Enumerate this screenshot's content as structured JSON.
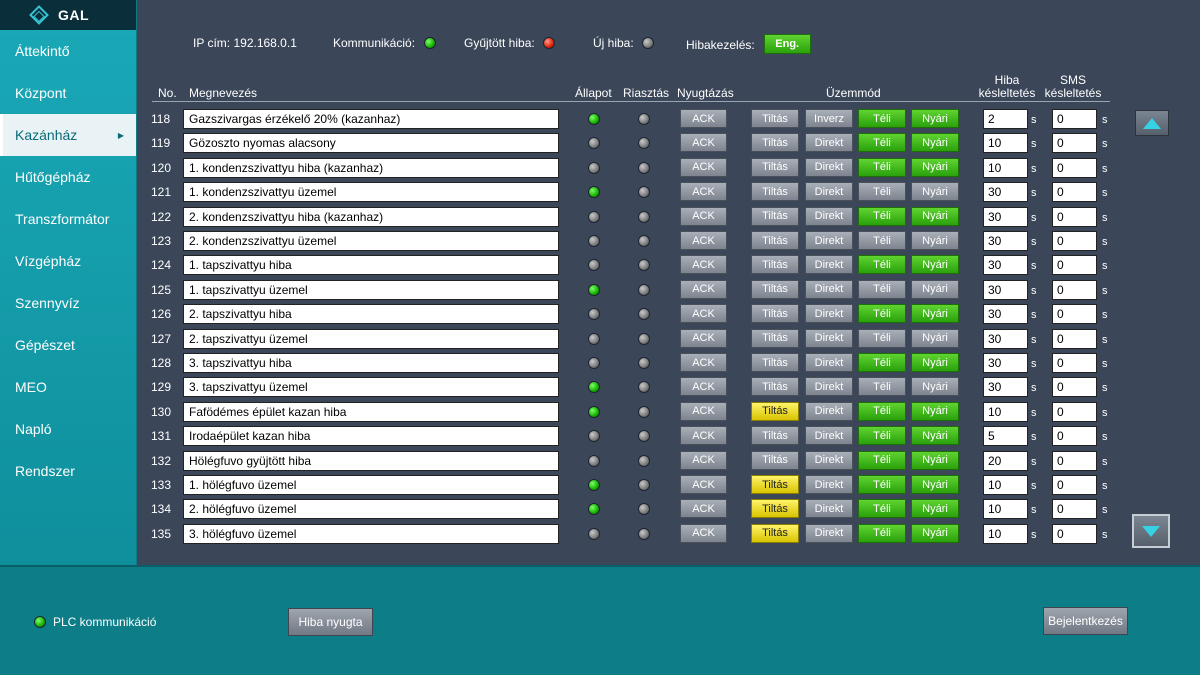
{
  "app": {
    "logo_text": "GAL"
  },
  "sidebar": {
    "items": [
      {
        "label": "Áttekintő",
        "active": false
      },
      {
        "label": "Központ",
        "active": false
      },
      {
        "label": "Kazánház",
        "active": true
      },
      {
        "label": "Hűtőgépház",
        "active": false
      },
      {
        "label": "Transzformátor",
        "active": false
      },
      {
        "label": "Vízgépház",
        "active": false
      },
      {
        "label": "Szennyvíz",
        "active": false
      },
      {
        "label": "Gépészet",
        "active": false
      },
      {
        "label": "MEO",
        "active": false
      },
      {
        "label": "Napló",
        "active": false
      },
      {
        "label": "Rendszer",
        "active": false
      }
    ]
  },
  "status": {
    "ip_label": "IP cím:",
    "ip_value": "192.168.0.1",
    "comm_label": "Kommunikáció:",
    "comm_state": "green",
    "collected_label": "Gyűjtött hiba:",
    "collected_state": "red",
    "new_label": "Új hiba:",
    "new_state": "gray",
    "handling_label": "Hibakezelés:",
    "handling_button": "Eng."
  },
  "columns": {
    "no": "No.",
    "name": "Megnevezés",
    "state": "Állapot",
    "alarm": "Riasztás",
    "ack": "Nyugtázás",
    "mode": "Üzemmód",
    "delay_1": "Hiba",
    "delay_2": "késleltetés",
    "sms_1": "SMS",
    "sms_2": "késleltetés"
  },
  "labels": {
    "ack": "ACK",
    "block": "Tiltás",
    "direct": "Direkt",
    "inverse": "Inverz",
    "winter": "Téli",
    "summer": "Nyári",
    "unit": "s"
  },
  "colors": {
    "green": "#2aa10c",
    "yellow": "#d8c400",
    "gray": "#7d848f",
    "red": "#e0200a"
  },
  "rows": [
    {
      "no": "118",
      "name": "Gazszivargas érzékelő 20% (kazanhaz)",
      "state": "green",
      "alarm": "gray",
      "block": false,
      "mode": "Inverz",
      "season": "both",
      "delay": "2",
      "sms": "0"
    },
    {
      "no": "119",
      "name": "Gözoszto nyomas alacsony",
      "state": "gray",
      "alarm": "gray",
      "block": false,
      "mode": "Direkt",
      "season": "both",
      "delay": "10",
      "sms": "0"
    },
    {
      "no": "120",
      "name": "1. kondenzszivattyu hiba (kazanhaz)",
      "state": "gray",
      "alarm": "gray",
      "block": false,
      "mode": "Direkt",
      "season": "both",
      "delay": "10",
      "sms": "0"
    },
    {
      "no": "121",
      "name": "1. kondenzszivattyu üzemel",
      "state": "green",
      "alarm": "gray",
      "block": false,
      "mode": "Direkt",
      "season": "none",
      "delay": "30",
      "sms": "0"
    },
    {
      "no": "122",
      "name": "2. kondenzszivattyu hiba (kazanhaz)",
      "state": "gray",
      "alarm": "gray",
      "block": false,
      "mode": "Direkt",
      "season": "both",
      "delay": "30",
      "sms": "0"
    },
    {
      "no": "123",
      "name": "2. kondenzszivattyu üzemel",
      "state": "gray",
      "alarm": "gray",
      "block": false,
      "mode": "Direkt",
      "season": "none",
      "delay": "30",
      "sms": "0"
    },
    {
      "no": "124",
      "name": "1. tapszivattyu hiba",
      "state": "gray",
      "alarm": "gray",
      "block": false,
      "mode": "Direkt",
      "season": "both",
      "delay": "30",
      "sms": "0"
    },
    {
      "no": "125",
      "name": "1. tapszivattyu üzemel",
      "state": "green",
      "alarm": "gray",
      "block": false,
      "mode": "Direkt",
      "season": "none",
      "delay": "30",
      "sms": "0"
    },
    {
      "no": "126",
      "name": "2. tapszivattyu hiba",
      "state": "gray",
      "alarm": "gray",
      "block": false,
      "mode": "Direkt",
      "season": "both",
      "delay": "30",
      "sms": "0"
    },
    {
      "no": "127",
      "name": "2. tapszivattyu üzemel",
      "state": "gray",
      "alarm": "gray",
      "block": false,
      "mode": "Direkt",
      "season": "none",
      "delay": "30",
      "sms": "0"
    },
    {
      "no": "128",
      "name": "3. tapszivattyu hiba",
      "state": "gray",
      "alarm": "gray",
      "block": false,
      "mode": "Direkt",
      "season": "both",
      "delay": "30",
      "sms": "0"
    },
    {
      "no": "129",
      "name": "3. tapszivattyu üzemel",
      "state": "green",
      "alarm": "gray",
      "block": false,
      "mode": "Direkt",
      "season": "none",
      "delay": "30",
      "sms": "0"
    },
    {
      "no": "130",
      "name": "Fafödémes épület kazan hiba",
      "state": "green",
      "alarm": "gray",
      "block": true,
      "mode": "Direkt",
      "season": "both",
      "delay": "10",
      "sms": "0"
    },
    {
      "no": "131",
      "name": "Irodaépület kazan hiba",
      "state": "gray",
      "alarm": "gray",
      "block": false,
      "mode": "Direkt",
      "season": "both",
      "delay": "5",
      "sms": "0"
    },
    {
      "no": "132",
      "name": "Hölégfuvo gyüjtött hiba",
      "state": "gray",
      "alarm": "gray",
      "block": false,
      "mode": "Direkt",
      "season": "both",
      "delay": "20",
      "sms": "0"
    },
    {
      "no": "133",
      "name": "1. hölégfuvo üzemel",
      "state": "green",
      "alarm": "gray",
      "block": true,
      "mode": "Direkt",
      "season": "both",
      "delay": "10",
      "sms": "0"
    },
    {
      "no": "134",
      "name": "2. hölégfuvo üzemel",
      "state": "green",
      "alarm": "gray",
      "block": true,
      "mode": "Direkt",
      "season": "both",
      "delay": "10",
      "sms": "0"
    },
    {
      "no": "135",
      "name": "3. hölégfuvo üzemel",
      "state": "gray",
      "alarm": "gray",
      "block": true,
      "mode": "Direkt",
      "season": "both",
      "delay": "10",
      "sms": "0"
    }
  ],
  "footer": {
    "plc_label": "PLC kommunikáció",
    "plc_state": "green",
    "reset_button": "Hiba nyugta",
    "login_button": "Bejelentkezés"
  },
  "icons": {
    "logo": "gal-logo-icon",
    "scroll_up": "triangle-up-icon",
    "scroll_down": "triangle-down-icon",
    "submenu": "chevron-right-icon"
  }
}
